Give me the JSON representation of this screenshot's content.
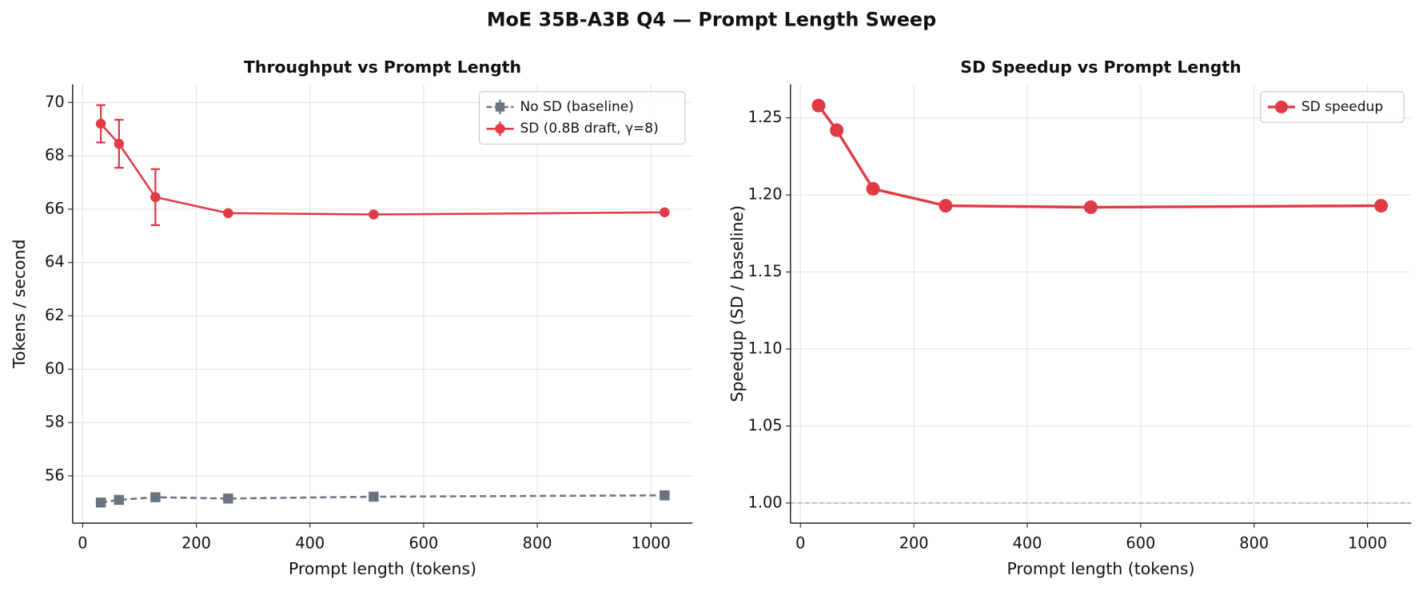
{
  "title": "MoE 35B-A3B Q4 — Prompt Length Sweep",
  "chart_data": [
    {
      "type": "line",
      "title": "Throughput vs Prompt Length",
      "xlabel": "Prompt length (tokens)",
      "ylabel": "Tokens / second",
      "x": [
        32,
        64,
        128,
        256,
        512,
        1024
      ],
      "series": [
        {
          "name": "No SD (baseline)",
          "color": "#6b7280",
          "marker": "square",
          "dash": true,
          "values": [
            55.0,
            55.1,
            55.2,
            55.15,
            55.22,
            55.27
          ],
          "errors": [
            0.05,
            0.05,
            0.05,
            0.05,
            0.05,
            0.12
          ]
        },
        {
          "name": "SD (0.8B draft, γ=8)",
          "color": "#e03a45",
          "marker": "circle",
          "dash": false,
          "values": [
            69.2,
            68.45,
            66.45,
            65.85,
            65.8,
            65.88
          ],
          "errors": [
            0.7,
            0.9,
            1.05,
            0.05,
            0.05,
            0.05
          ]
        }
      ],
      "xlim": [
        -17.6,
        1073
      ],
      "ylim": [
        54.23,
        70.68
      ],
      "xticks": [
        0,
        200,
        400,
        600,
        800,
        1000
      ],
      "yticks": [
        56,
        58,
        60,
        62,
        64,
        66,
        68,
        70
      ],
      "grid": true,
      "legend": "upper right"
    },
    {
      "type": "line",
      "title": "SD Speedup vs Prompt Length",
      "xlabel": "Prompt length (tokens)",
      "ylabel": "Speedup (SD / baseline)",
      "x": [
        32,
        64,
        128,
        256,
        512,
        1024
      ],
      "series": [
        {
          "name": "SD speedup",
          "color": "#e03a45",
          "marker": "circle",
          "dash": false,
          "values": [
            1.258,
            1.242,
            1.204,
            1.193,
            1.192,
            1.193
          ]
        }
      ],
      "hline": 1,
      "xlim": [
        -17.6,
        1077
      ],
      "ylim": [
        0.987,
        1.2718
      ],
      "xticks": [
        0,
        200,
        400,
        600,
        800,
        1000
      ],
      "yticks": [
        {
          "value": 1,
          "label": "1.00"
        },
        1.05,
        {
          "value": 1.1,
          "label": "1.10"
        },
        1.15,
        {
          "value": 1.2,
          "label": "1.20"
        },
        1.25
      ],
      "grid": true,
      "legend": "upper right"
    }
  ]
}
